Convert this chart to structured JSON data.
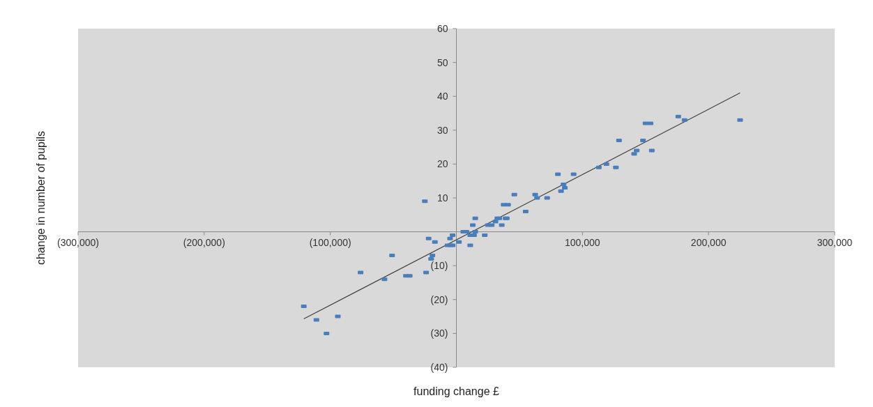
{
  "chart_data": {
    "type": "scatter",
    "xlabel": "funding change £",
    "ylabel": "change in number of pupils",
    "xlim": [
      -300000,
      300000
    ],
    "ylim": [
      -40,
      60
    ],
    "xticks": [
      {
        "value": -300000,
        "label": "(300,000)"
      },
      {
        "value": -200000,
        "label": "(200,000)"
      },
      {
        "value": -100000,
        "label": "(100,000)"
      },
      {
        "value": 100000,
        "label": "100,000"
      },
      {
        "value": 200000,
        "label": "200,000"
      },
      {
        "value": 300000,
        "label": "300,000"
      }
    ],
    "yticks": [
      {
        "value": -40,
        "label": "(40)"
      },
      {
        "value": -30,
        "label": "(30)"
      },
      {
        "value": -20,
        "label": "(20)"
      },
      {
        "value": -10,
        "label": "(10)"
      },
      10,
      20,
      30,
      40,
      50,
      60
    ],
    "grid": false,
    "marker": "square",
    "series": [
      {
        "color": "#4a7ebb",
        "x": [
          -121000,
          -111000,
          -103000,
          -94000,
          -76000,
          -57000,
          -51000,
          -40000,
          -37000,
          -25000,
          -24000,
          -22000,
          -20000,
          -19000,
          -17000,
          -7000,
          -4500,
          -3000,
          -5000,
          -3000,
          2000,
          5500,
          8000,
          11000,
          11000,
          14000,
          13000,
          15000,
          15000,
          22500,
          25000,
          28000,
          31000,
          32500,
          34000,
          36000,
          37500,
          41000,
          39000,
          40000,
          46000,
          55000,
          62500,
          64000,
          72000,
          80500,
          83000,
          85000,
          86000,
          93000,
          113000,
          119000,
          126500,
          129000,
          141000,
          143000,
          148000,
          150000,
          154000,
          155000,
          176000,
          181000,
          225000
        ],
        "values": [
          -22,
          -26,
          -30,
          -25,
          -12,
          -14,
          -7,
          -13,
          -13,
          9,
          -12,
          -2,
          -8,
          -7,
          -3,
          -4,
          -4,
          -4,
          -2,
          -1,
          -3,
          0,
          0,
          -4,
          -1,
          -1,
          2,
          4,
          0,
          -1,
          2,
          2,
          3,
          4,
          4,
          2,
          8,
          8,
          4,
          4,
          11,
          6,
          11,
          10,
          10,
          17,
          12,
          14,
          13,
          17,
          19,
          20,
          19,
          27,
          23,
          24,
          27,
          32,
          32,
          24,
          34,
          33,
          33
        ]
      },
      {
        "type": "line",
        "color": "#404040",
        "marker": "none",
        "x": [
          -121000,
          225000
        ],
        "values": [
          -25.7,
          41
        ]
      }
    ]
  }
}
